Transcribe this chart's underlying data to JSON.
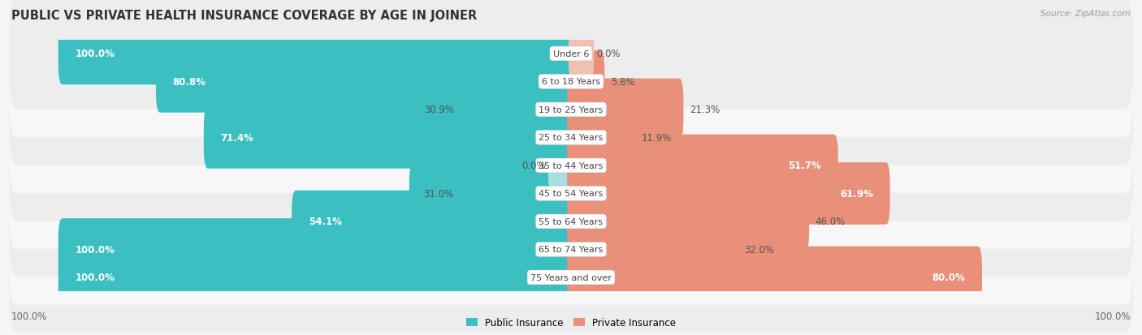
{
  "title": "PUBLIC VS PRIVATE HEALTH INSURANCE COVERAGE BY AGE IN JOINER",
  "source": "Source: ZipAtlas.com",
  "categories": [
    "Under 6",
    "6 to 18 Years",
    "19 to 25 Years",
    "25 to 34 Years",
    "35 to 44 Years",
    "45 to 54 Years",
    "55 to 64 Years",
    "65 to 74 Years",
    "75 Years and over"
  ],
  "public_values": [
    100.0,
    80.8,
    30.9,
    71.4,
    0.0,
    31.0,
    54.1,
    100.0,
    100.0
  ],
  "private_values": [
    0.0,
    5.8,
    21.3,
    11.9,
    51.7,
    61.9,
    46.0,
    32.0,
    80.0
  ],
  "public_color": "#3BBFC0",
  "private_color": "#E8907A",
  "public_color_light": "#A8DEDE",
  "row_bg_odd": "#EDEDEE",
  "row_bg_even": "#F7F7F8",
  "label_bg_color": "#FFFFFF",
  "title_fontsize": 10.5,
  "label_fontsize": 8.5,
  "tick_fontsize": 8.5,
  "bar_height": 0.62,
  "figsize": [
    14.06,
    4.14
  ],
  "dpi": 100,
  "xlim_left": -110,
  "xlim_right": 110,
  "x_axis_label_left": "100.0%",
  "x_axis_label_right": "100.0%"
}
